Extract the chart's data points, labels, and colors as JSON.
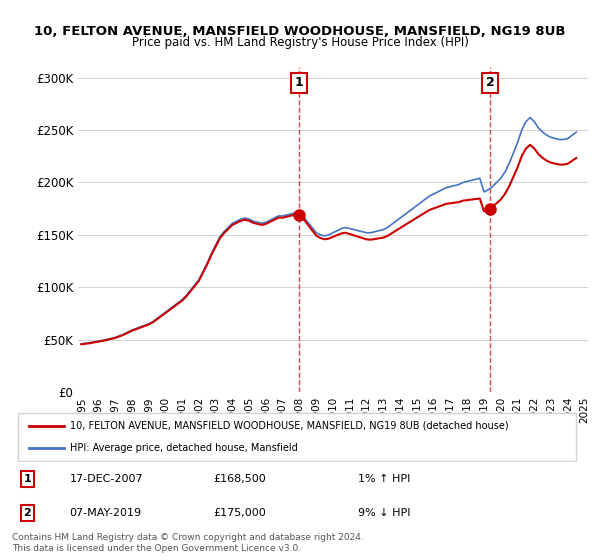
{
  "title1": "10, FELTON AVENUE, MANSFIELD WOODHOUSE, MANSFIELD, NG19 8UB",
  "title2": "Price paid vs. HM Land Registry's House Price Index (HPI)",
  "ylabel_ticks": [
    "£0",
    "£50K",
    "£100K",
    "£150K",
    "£200K",
    "£250K",
    "£300K"
  ],
  "ytick_vals": [
    0,
    50000,
    100000,
    150000,
    200000,
    250000,
    300000
  ],
  "ylim": [
    0,
    310000
  ],
  "purchase1_date": "17-DEC-2007",
  "purchase1_price": 168500,
  "purchase1_x": 2007.96,
  "purchase2_date": "07-MAY-2019",
  "purchase2_price": 175000,
  "purchase2_x": 2019.36,
  "legend_line1": "10, FELTON AVENUE, MANSFIELD WOODHOUSE, MANSFIELD, NG19 8UB (detached house)",
  "legend_line2": "HPI: Average price, detached house, Mansfield",
  "annotation1_label": "1",
  "annotation1_pct": "1% ↑ HPI",
  "annotation2_label": "2",
  "annotation2_pct": "9% ↓ HPI",
  "footer": "Contains HM Land Registry data © Crown copyright and database right 2024.\nThis data is licensed under the Open Government Licence v3.0.",
  "hpi_color": "#4472c4",
  "price_color": "#cc0000",
  "hpi_years": [
    1995,
    1995.25,
    1995.5,
    1995.75,
    1996,
    1996.25,
    1996.5,
    1996.75,
    1997,
    1997.25,
    1997.5,
    1997.75,
    1998,
    1998.25,
    1998.5,
    1998.75,
    1999,
    1999.25,
    1999.5,
    1999.75,
    2000,
    2000.25,
    2000.5,
    2000.75,
    2001,
    2001.25,
    2001.5,
    2001.75,
    2002,
    2002.25,
    2002.5,
    2002.75,
    2003,
    2003.25,
    2003.5,
    2003.75,
    2004,
    2004.25,
    2004.5,
    2004.75,
    2005,
    2005.25,
    2005.5,
    2005.75,
    2006,
    2006.25,
    2006.5,
    2006.75,
    2007,
    2007.25,
    2007.5,
    2007.75,
    2008,
    2008.25,
    2008.5,
    2008.75,
    2009,
    2009.25,
    2009.5,
    2009.75,
    2010,
    2010.25,
    2010.5,
    2010.75,
    2011,
    2011.25,
    2011.5,
    2011.75,
    2012,
    2012.25,
    2012.5,
    2012.75,
    2013,
    2013.25,
    2013.5,
    2013.75,
    2014,
    2014.25,
    2014.5,
    2014.75,
    2015,
    2015.25,
    2015.5,
    2015.75,
    2016,
    2016.25,
    2016.5,
    2016.75,
    2017,
    2017.25,
    2017.5,
    2017.75,
    2018,
    2018.25,
    2018.5,
    2018.75,
    2019,
    2019.25,
    2019.5,
    2019.75,
    2020,
    2020.25,
    2020.5,
    2020.75,
    2021,
    2021.25,
    2021.5,
    2021.75,
    2022,
    2022.25,
    2022.5,
    2022.75,
    2023,
    2023.25,
    2023.5,
    2023.75,
    2024,
    2024.25,
    2024.5
  ],
  "hpi_values": [
    46000,
    46500,
    47000,
    47800,
    48500,
    49200,
    50100,
    51000,
    52000,
    53500,
    55000,
    57000,
    59000,
    60500,
    62000,
    63500,
    65000,
    67000,
    70000,
    73000,
    76000,
    79000,
    82000,
    85000,
    88000,
    92000,
    97000,
    102000,
    107000,
    115000,
    123000,
    132000,
    140000,
    148000,
    153000,
    157000,
    161000,
    163000,
    165000,
    166000,
    165000,
    163000,
    162000,
    161000,
    162000,
    164000,
    166000,
    168000,
    168000,
    169000,
    170000,
    171000,
    170000,
    167000,
    162000,
    157000,
    152000,
    150000,
    149000,
    150000,
    152000,
    154000,
    156000,
    157000,
    156000,
    155000,
    154000,
    153000,
    152000,
    152000,
    153000,
    154000,
    155000,
    157000,
    160000,
    163000,
    166000,
    169000,
    172000,
    175000,
    178000,
    181000,
    184000,
    187000,
    189000,
    191000,
    193000,
    195000,
    196000,
    197000,
    198000,
    200000,
    201000,
    202000,
    203000,
    204000,
    191000,
    193000,
    196000,
    200000,
    204000,
    210000,
    218000,
    228000,
    238000,
    250000,
    258000,
    262000,
    258000,
    252000,
    248000,
    245000,
    243000,
    242000,
    241000,
    241000,
    242000,
    245000,
    248000
  ],
  "xtick_years": [
    1995,
    1996,
    1997,
    1998,
    1999,
    2000,
    2001,
    2002,
    2003,
    2004,
    2005,
    2006,
    2007,
    2008,
    2009,
    2010,
    2011,
    2012,
    2013,
    2014,
    2015,
    2016,
    2017,
    2018,
    2019,
    2020,
    2021,
    2022,
    2023,
    2024,
    2025
  ]
}
